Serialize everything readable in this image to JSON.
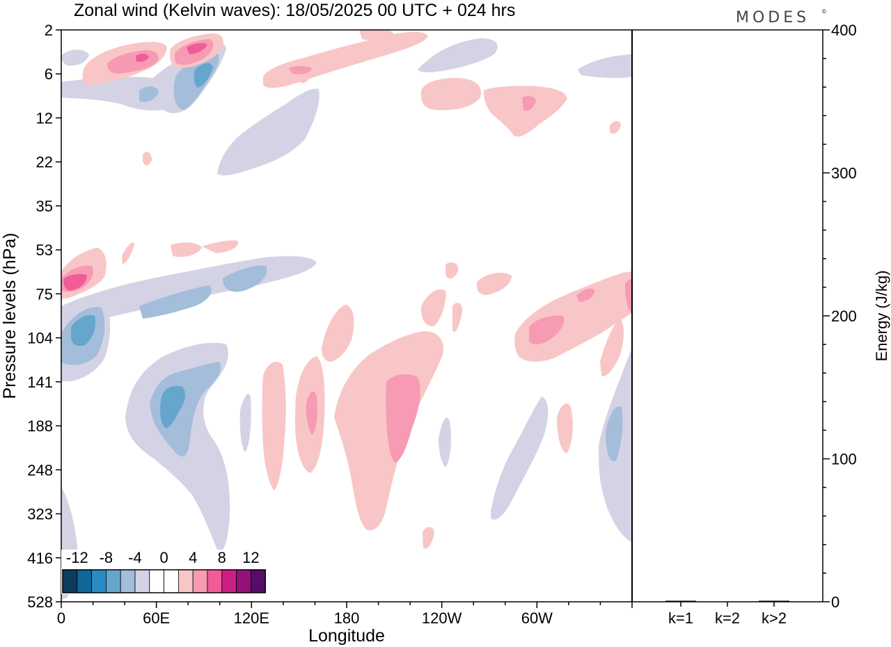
{
  "chart_data": {
    "type": "heatmap",
    "title": "Zonal wind (Kelvin waves):  18/05/2025  00 UTC  + 024 hrs",
    "brand": "MODES",
    "brand_mark": "©",
    "xlabel": "Longitude",
    "ylabel": "Pressure levels (hPa)",
    "x_ticks": [
      "0",
      "60E",
      "120E",
      "180",
      "120W",
      "60W"
    ],
    "x_tick_values": [
      0,
      60,
      120,
      180,
      240,
      300
    ],
    "xlim": [
      0,
      360
    ],
    "y_ticks": [
      "2",
      "6",
      "12",
      "22",
      "35",
      "53",
      "75",
      "104",
      "141",
      "188",
      "248",
      "323",
      "416",
      "528"
    ],
    "colorbar": {
      "tick_labels": [
        "-12",
        "-8",
        "-4",
        "0",
        "4",
        "8",
        "12"
      ],
      "colors": [
        "#0c3d5e",
        "#11679a",
        "#2a8bc4",
        "#66a6cc",
        "#a3bddb",
        "#d3d3e5",
        "#ffffff",
        "#ffffff",
        "#f8c6c6",
        "#f79ab3",
        "#ef5c98",
        "#cc1f86",
        "#92117b",
        "#570c6a"
      ]
    },
    "contour_regions": [
      {
        "sign": "positive",
        "level": 4,
        "center_lon": 30,
        "center_hpa": 6
      },
      {
        "sign": "positive",
        "level": 8,
        "center_lon": 85,
        "center_hpa": 4
      },
      {
        "sign": "negative",
        "level": -4,
        "center_lon": 90,
        "center_hpa": 7
      },
      {
        "sign": "positive",
        "level": 4,
        "center_lon": 150,
        "center_hpa": 5
      },
      {
        "sign": "positive",
        "level": 4,
        "center_lon": 285,
        "center_hpa": 10
      },
      {
        "sign": "negative",
        "level": -2,
        "center_lon": 140,
        "center_hpa": 15
      },
      {
        "sign": "positive",
        "level": 8,
        "center_lon": 5,
        "center_hpa": 75
      },
      {
        "sign": "negative",
        "level": -8,
        "center_lon": 10,
        "center_hpa": 104
      },
      {
        "sign": "negative",
        "level": -4,
        "center_lon": 90,
        "center_hpa": 80
      },
      {
        "sign": "negative",
        "level": -8,
        "center_lon": 65,
        "center_hpa": 170
      },
      {
        "sign": "positive",
        "level": 6,
        "center_lon": 205,
        "center_hpa": 170
      },
      {
        "sign": "positive",
        "level": 4,
        "center_lon": 155,
        "center_hpa": 180
      },
      {
        "sign": "positive",
        "level": 6,
        "center_lon": 310,
        "center_hpa": 110
      },
      {
        "sign": "negative",
        "level": -4,
        "center_lon": 350,
        "center_hpa": 190
      },
      {
        "sign": "negative",
        "level": -2,
        "center_lon": 300,
        "center_hpa": 250
      }
    ],
    "energy_panel": {
      "ylabel": "Energy (J/kg)",
      "y_ticks": [
        "0",
        "100",
        "200",
        "300",
        "400"
      ],
      "ylim": [
        0,
        400
      ],
      "categories": [
        "k=1",
        "k=2",
        "k>2"
      ],
      "values": [
        0.5,
        0,
        0.3
      ]
    }
  }
}
